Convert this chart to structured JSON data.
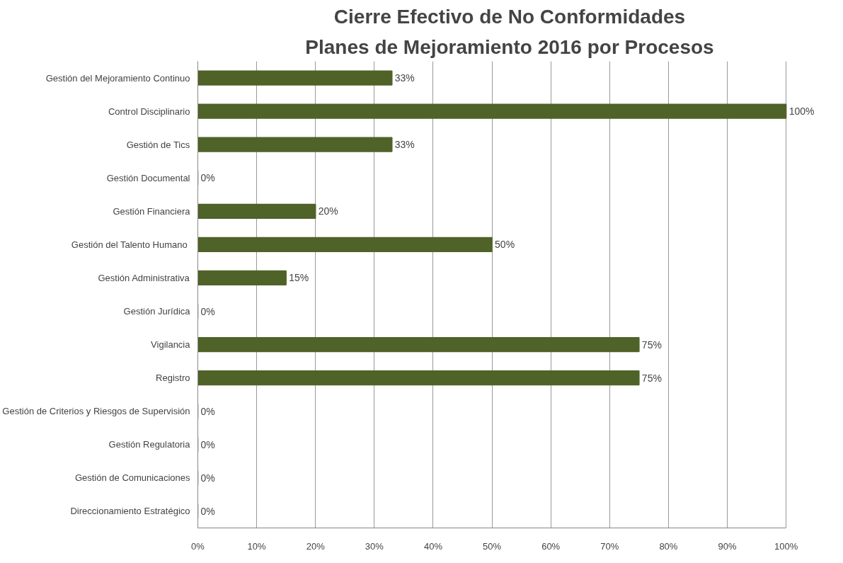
{
  "chart_data": {
    "type": "bar",
    "orientation": "horizontal",
    "title": "Cierre Efectivo de No Conformidades",
    "subtitle": "Planes de Mejoramiento 2016 por Procesos",
    "categories": [
      "Gestión del Mejoramiento Continuo",
      "Control Disciplinario",
      "Gestión de Tics",
      "Gestión Documental",
      "Gestión Financiera",
      "Gestión del Talento Humano ",
      "Gestión Administrativa",
      "Gestión Jurídica",
      "Vigilancia",
      "Registro",
      "Gestión de Criterios y Riesgos de Supervisión",
      "Gestión Regulatoria",
      "Gestión de Comunicaciones",
      "Direccionamiento Estratégico"
    ],
    "values": [
      33,
      100,
      33,
      0,
      20,
      50,
      15,
      0,
      75,
      75,
      0,
      0,
      0,
      0
    ],
    "value_labels": [
      "33%",
      "100%",
      "33%",
      "0%",
      "20%",
      "50%",
      "15%",
      "0%",
      "75%",
      "75%",
      "0%",
      "0%",
      "0%",
      "0%"
    ],
    "color": "#4f6228",
    "xlim": [
      0,
      100
    ],
    "xticks": [
      {
        "value": 0,
        "label": "0%"
      },
      {
        "value": 10,
        "label": "10%"
      },
      {
        "value": 20,
        "label": "20%"
      },
      {
        "value": 30,
        "label": "30%"
      },
      {
        "value": 40,
        "label": "40%"
      },
      {
        "value": 50,
        "label": "50%"
      },
      {
        "value": 60,
        "label": "60%"
      },
      {
        "value": 70,
        "label": "70%"
      },
      {
        "value": 80,
        "label": "80%"
      },
      {
        "value": 90,
        "label": "90%"
      },
      {
        "value": 100,
        "label": "100%"
      }
    ],
    "grid": "x"
  }
}
